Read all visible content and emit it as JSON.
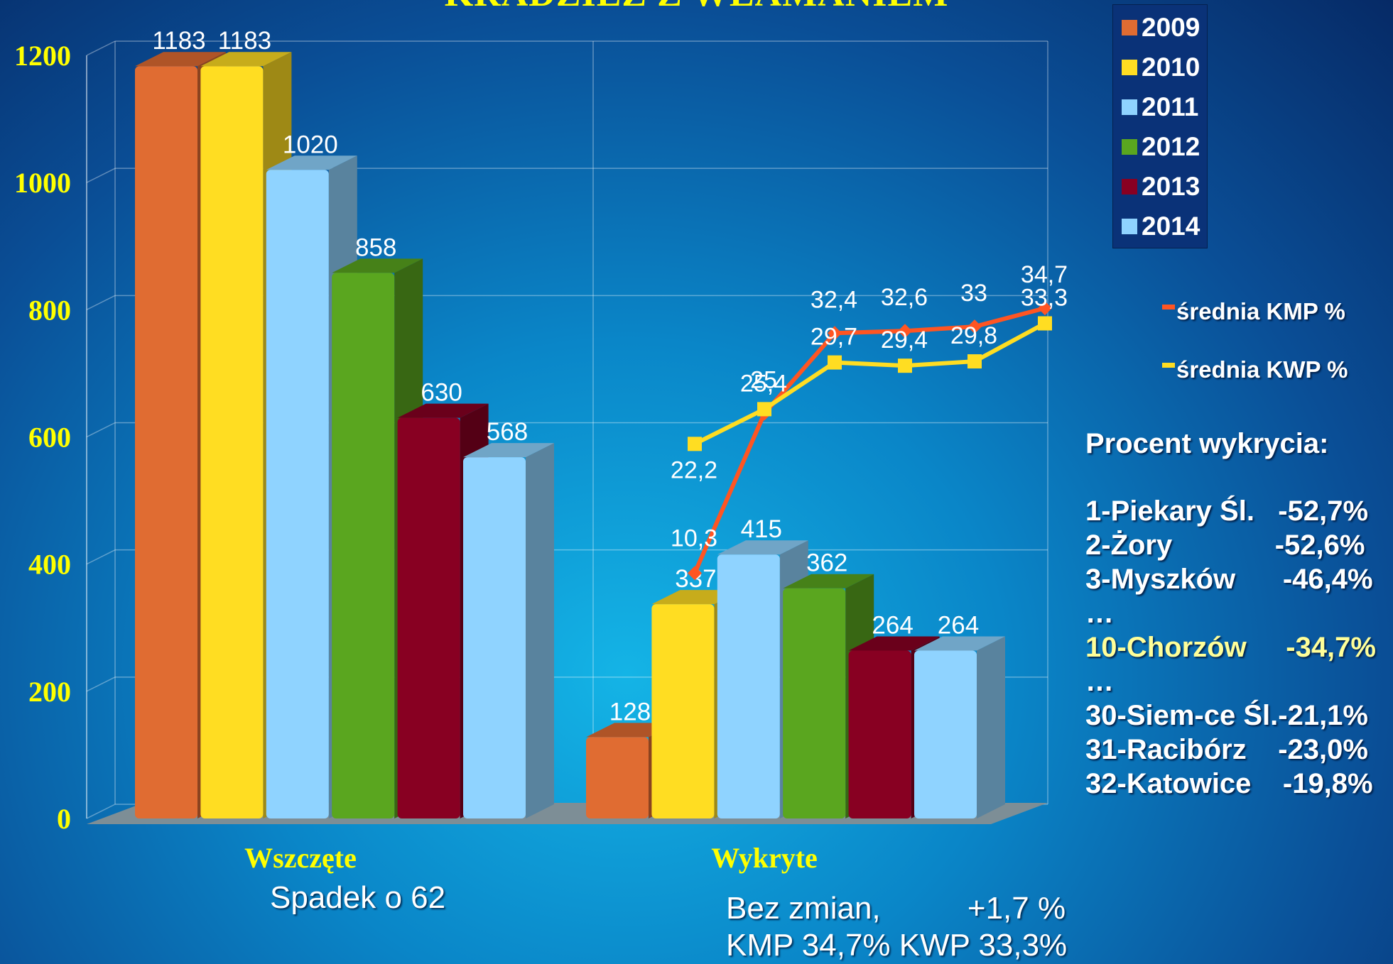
{
  "title": "KRADZIEŻ Z WŁAMANIEM",
  "chart_data": {
    "type": "bar",
    "categories": [
      "Wszczęte",
      "Wykryte"
    ],
    "series": [
      {
        "name": "2009",
        "color": "#e06c32",
        "values": [
          1183,
          128
        ]
      },
      {
        "name": "2010",
        "color": "#ffdd22",
        "values": [
          1183,
          337
        ]
      },
      {
        "name": "2011",
        "color": "#8fd3ff",
        "values": [
          1020,
          415
        ]
      },
      {
        "name": "2012",
        "color": "#5aa61f",
        "values": [
          858,
          362
        ]
      },
      {
        "name": "2013",
        "color": "#880022",
        "values": [
          630,
          264
        ]
      },
      {
        "name": "2014",
        "color": "#8fd3ff",
        "values": [
          568,
          264
        ]
      }
    ],
    "ylim": [
      0,
      1200
    ],
    "yticks": [
      0,
      200,
      400,
      600,
      800,
      1000,
      1200
    ],
    "grid": true,
    "legend_position": "top-right",
    "lines": [
      {
        "name": "średnia KMP %",
        "color": "#ff5522",
        "marker": "diamond",
        "values": [
          10.3,
          25,
          32.4,
          32.6,
          33,
          34.7
        ],
        "labels": [
          "10,3",
          "25",
          "32,4",
          "32,6",
          "33",
          "34,7"
        ]
      },
      {
        "name": "średnia KWP %",
        "color": "#ffdd22",
        "marker": "square",
        "values": [
          22.2,
          25.4,
          29.7,
          29.4,
          29.8,
          33.3
        ],
        "labels": [
          "22,2",
          "25,4",
          "29,7",
          "29,4",
          "29,8",
          "33,3"
        ]
      }
    ]
  },
  "legend": {
    "years": [
      "2009",
      "2010",
      "2011",
      "2012",
      "2013",
      "2014"
    ],
    "kmp_label": "średnia KMP %",
    "kwp_label": "średnia KWP %"
  },
  "side_panel": {
    "heading": "Procent wykrycia:",
    "rows": [
      {
        "text": "1-Piekary Śl.   -52,7%",
        "highlight": false
      },
      {
        "text": "2-Żory             -52,6%",
        "highlight": false
      },
      {
        "text": "3-Myszków      -46,4%",
        "highlight": false
      },
      {
        "text": "…",
        "highlight": false
      },
      {
        "text": "10-Chorzów     -34,7%",
        "highlight": true
      },
      {
        "text": "…",
        "highlight": false
      },
      {
        "text": "30-Siem-ce Śl.-21,1%",
        "highlight": false
      },
      {
        "text": "31-Racibórz    -23,0%",
        "highlight": false
      },
      {
        "text": "32-Katowice    -19,8%",
        "highlight": false
      }
    ]
  },
  "notes": {
    "left": "Spadek o 62",
    "right_line1": "Bez zmian,          +1,7 %",
    "right_line2": "KMP 34,7% KWP 33,3%"
  }
}
